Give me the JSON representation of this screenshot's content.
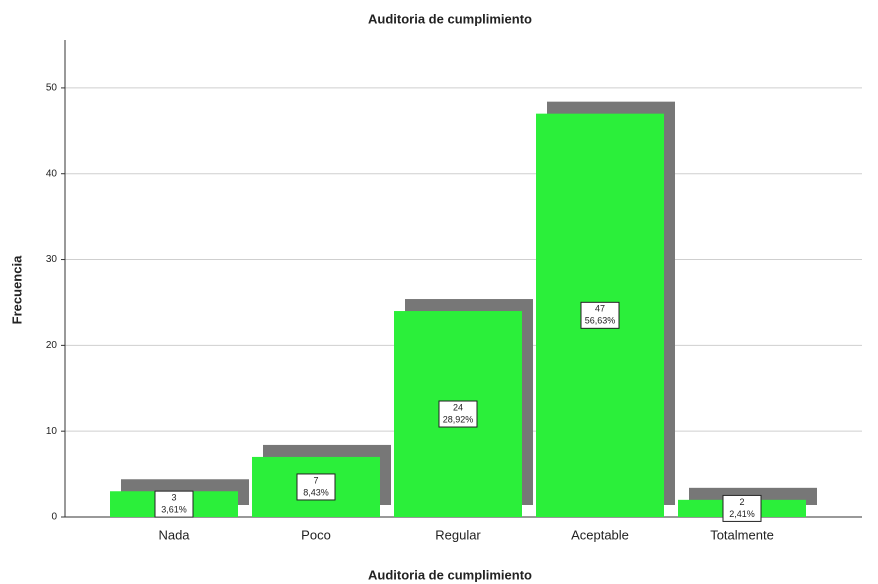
{
  "chart_data": {
    "type": "bar",
    "title": "Auditoria de cumplimiento",
    "x_label": "Auditoria de cumplimiento",
    "y_label": "Frecuencia",
    "categories": [
      "Nada",
      "Poco",
      "Regular",
      "Aceptable",
      "Totalmente"
    ],
    "values": [
      3,
      7,
      24,
      47,
      2
    ],
    "percentages": [
      3.61,
      8.43,
      28.92,
      56.63,
      2.41
    ],
    "percentage_labels": [
      "3,61%",
      "8,43%",
      "28,92%",
      "56,63%",
      "2,41%"
    ],
    "color": "#2bef3a",
    "shadow_color": "#777777",
    "ylim": [
      0,
      55
    ],
    "yticks": [
      0,
      10,
      20,
      30,
      40,
      50
    ],
    "grid": true
  }
}
